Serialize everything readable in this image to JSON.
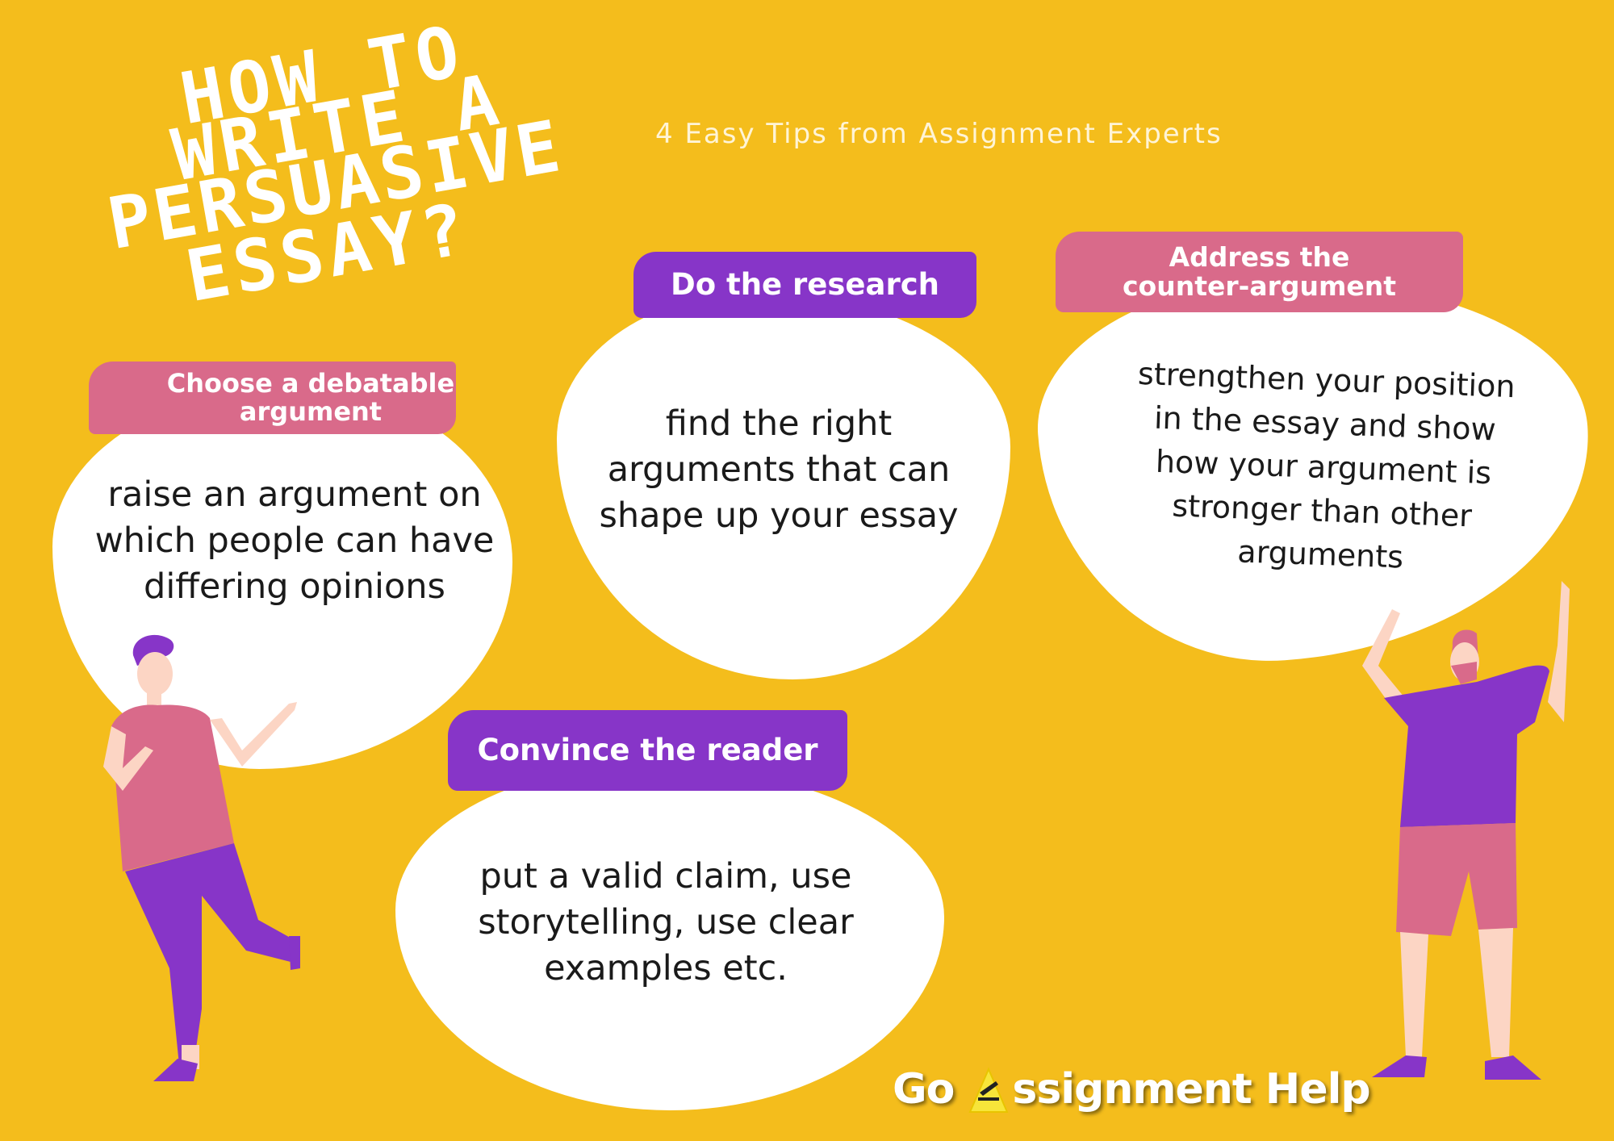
{
  "title": {
    "lines": [
      "HOW TO",
      "WRITE A",
      "PERSUASIVE",
      "ESSAY?"
    ]
  },
  "subtitle": "4 Easy Tips from Assignment Experts",
  "tips": [
    {
      "heading_lines": [
        "Choose a debatable",
        "argument"
      ],
      "body_lines": [
        "raise an argument on",
        "which people can have",
        "differing opinions"
      ],
      "banner_color": "#D96A8A"
    },
    {
      "heading_lines": [
        "Do the research"
      ],
      "body_lines": [
        "find the right",
        "arguments that can",
        "shape up your essay"
      ],
      "banner_color": "#8735C8"
    },
    {
      "heading_lines": [
        "Address the",
        "counter-argument"
      ],
      "body_lines": [
        "strengthen your position",
        "in the essay and show",
        "how your argument is",
        "stronger than other",
        "arguments"
      ],
      "banner_color": "#D96A8A"
    },
    {
      "heading_lines": [
        "Convince the reader"
      ],
      "body_lines": [
        "put a valid claim, use",
        "storytelling, use clear",
        "examples etc."
      ],
      "banner_color": "#8735C8"
    }
  ],
  "brand": {
    "prefix": "Go",
    "suffix": "ssignment Help",
    "logo_icon": "pen-triangle-logo-icon"
  },
  "colors": {
    "background": "#F4BD1C",
    "purple": "#8735C8",
    "pink": "#D96A8A",
    "skin": "#FCD5C4",
    "white": "#FFFFFF"
  }
}
